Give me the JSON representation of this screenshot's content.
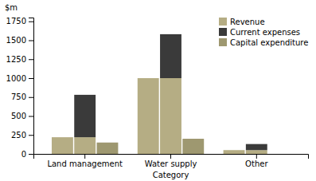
{
  "chart_data": {
    "type": "bar",
    "categories": [
      "Land management",
      "Water supply",
      "Other"
    ],
    "series": [
      {
        "name": "Revenue",
        "color": "#b5ad84",
        "values": [
          220,
          1000,
          50
        ]
      },
      {
        "name": "Current expenses",
        "color": "#3a3a3a",
        "values": [
          560,
          580,
          80
        ]
      },
      {
        "name": "Capital expenditure",
        "color": "#9e9870",
        "values": [
          150,
          200,
          0
        ]
      }
    ],
    "stacked": true,
    "x_label": "Category",
    "y_label": "$m",
    "ylim": [
      0,
      1800
    ],
    "yticks": [
      0,
      250,
      500,
      750,
      1000,
      1250,
      1500,
      1750
    ],
    "legend": "upper right",
    "grid": false
  }
}
